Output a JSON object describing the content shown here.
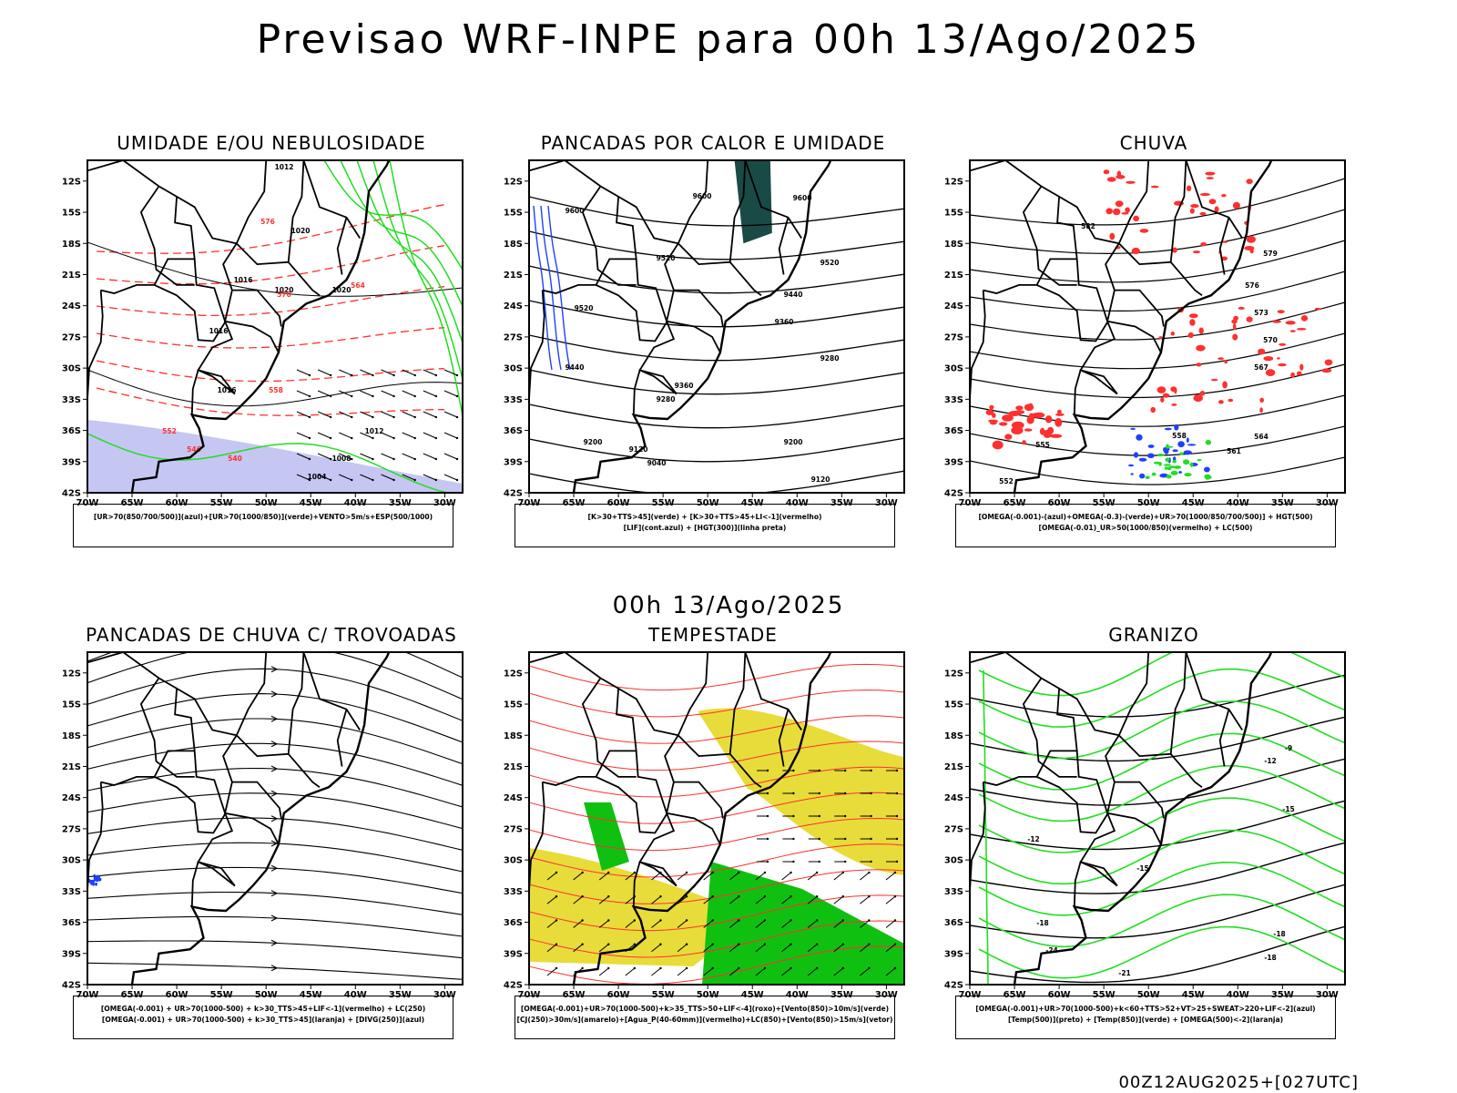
{
  "header": {
    "title": "Previsao WRF-INPE  para 00h 13/Ago/2025",
    "mid_date": "00h 13/Ago/2025",
    "run_stamp": "00Z12AUG2025+[027UTC]"
  },
  "axes": {
    "lat_labels": [
      "12S",
      "15S",
      "18S",
      "21S",
      "24S",
      "27S",
      "30S",
      "33S",
      "36S",
      "39S",
      "42S"
    ],
    "lon_labels": [
      "70W",
      "65W",
      "60W",
      "55W",
      "50W",
      "45W",
      "40W",
      "35W",
      "30W"
    ]
  },
  "panels": [
    {
      "title": "UMIDADE E/OU NEBULOSIDADE",
      "caption_lines": [
        "[UR>70(850/700/500)](azul)+[UR>70(1000/850)](verde)+VENTO>5m/s+ESP(500/1000)"
      ],
      "contour_labels": [
        "1012",
        "1016",
        "1016",
        "1020",
        "1020",
        "1020",
        "1016",
        "1012",
        "1008",
        "1004",
        "576",
        "570",
        "564",
        "558",
        "552",
        "546",
        "540"
      ]
    },
    {
      "title": "PANCADAS POR CALOR E UMIDADE",
      "caption_lines": [
        "[K>30+TTS>45](verde) + [K>30+TTS>45+LI<-1](vermelho)",
        "[LIF](cont.azul) + [HGT(300)](linha preta)"
      ],
      "contour_labels": [
        "9600",
        "9600",
        "9600",
        "9520",
        "9520",
        "9520",
        "9440",
        "9440",
        "9360",
        "9360",
        "9280",
        "9280",
        "9200",
        "9200",
        "9120",
        "9120",
        "9040"
      ]
    },
    {
      "title": "CHUVA",
      "caption_lines": [
        "[OMEGA(-0.001)-(azul)+OMEGA(-0.3)-(verde)+UR>70(1000/850/700/500)] + HGT(500)",
        "[OMEGA(-0.01)_UR>50(1000/850)(vermelho) + LC(500)"
      ],
      "contour_labels": [
        "582",
        "579",
        "576",
        "573",
        "570",
        "567",
        "564",
        "561",
        "558",
        "555",
        "552"
      ]
    },
    {
      "title": "PANCADAS DE CHUVA C/ TROVOADAS",
      "caption_lines": [
        "[OMEGA(-0.001) + UR>70(1000-500) + k>30_TTS>45+LIF<-1](vermelho) + LC(250)",
        "[OMEGA(-0.001) + UR>70(1000-500) + k>30_TTS>45](laranja) + [DIVG(250)](azul)"
      ],
      "contour_labels": []
    },
    {
      "title": "TEMPESTADE",
      "caption_lines": [
        "[OMEGA(-0.001)+UR>70(1000-500)+k>35_TTS>50+LIF<-4](roxo)+[Vento(850)>10m/s](verde)",
        "[CJ(250)>30m/s](amarelo)+[Agua_P(40-60mm)](vermelho)+LC(850)+[Vento(850)>15m/s](vetor)"
      ],
      "contour_labels": []
    },
    {
      "title": "GRANIZO",
      "caption_lines": [
        "[OMEGA(-0.001)+UR>70(1000-500)+k<60+TTS>52+VT>25+SWEAT>220+LIF<-2](azul)",
        "[Temp(500)](preto) + [Temp(850)](verde) + [OMEGA(500)<-2](laranja)"
      ],
      "contour_labels": [
        "-9",
        "-12",
        "-12",
        "-15",
        "-15",
        "-18",
        "-18",
        "-18",
        "-21",
        "-24"
      ]
    }
  ],
  "colors": {
    "contour_black": "#000000",
    "red": "#ff3030",
    "green": "#22dd22",
    "blue": "#2040ff",
    "lavender": "#b8b8f0",
    "yellow": "#e8dc3a",
    "dark_teal": "#1a4a46",
    "bright_green": "#10c010"
  }
}
